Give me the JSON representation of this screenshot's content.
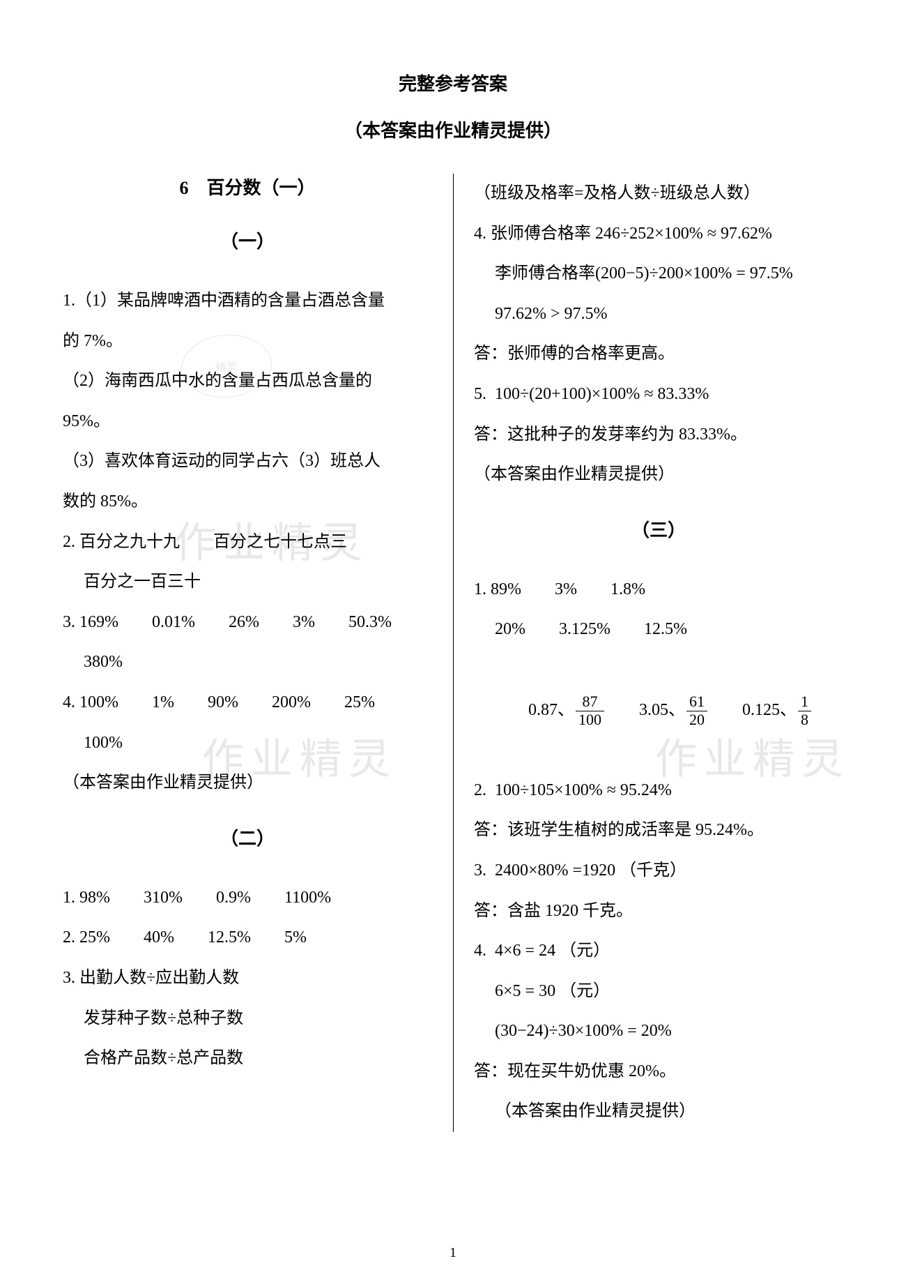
{
  "title": "完整参考答案",
  "subtitle": "（本答案由作业精灵提供）",
  "chapter": "6　百分数（一）",
  "pageNumber": "1",
  "watermark": "作业精灵",
  "stampText": "精灵",
  "left": {
    "sec1_header": "（一）",
    "l1": "1.（1）某品牌啤酒中酒精的含量占酒总含量",
    "l2": "的 7%。",
    "l3": "（2）海南西瓜中水的含量占西瓜总含量的",
    "l4": "95%。",
    "l5": "（3）喜欢体育运动的同学占六（3）班总人",
    "l6": "数的 85%。",
    "l7": "2. 百分之九十九　　百分之七十七点三",
    "l8": "百分之一百三十",
    "l9": "3. 169%　　0.01%　　26%　　3%　　50.3%",
    "l10": "380%",
    "l11": "4. 100%　　1%　　90%　　200%　　25%",
    "l12": "100%",
    "l13": "（本答案由作业精灵提供）",
    "sec2_header": "（二）",
    "l14": "1. 98%　　310%　　0.9%　　1100%",
    "l15": "2. 25%　　40%　　12.5%　　5%",
    "l16": "3. 出勤人数÷应出勤人数",
    "l17": "发芽种子数÷总种子数",
    "l18": "合格产品数÷总产品数"
  },
  "right": {
    "r1": "（班级及格率=及格人数÷班级总人数）",
    "r2": "4. 张师傅合格率 246÷252×100% ≈ 97.62%",
    "r3": "李师傅合格率(200−5)÷200×100% = 97.5%",
    "r4": "97.62% > 97.5%",
    "r5": "答：张师傅的合格率更高。",
    "r6": "5.  100÷(20+100)×100% ≈ 83.33%",
    "r7": "答：这批种子的发芽率约为 83.33%。",
    "r8": "（本答案由作业精灵提供）",
    "sec3_header": "（三）",
    "r9": "1. 89%　　3%　　1.8%",
    "r10": "20%　　3.125%　　12.5%",
    "r11a": "0.87、",
    "r11b": "　　3.05、",
    "r11c": "　　0.125、",
    "f1n": "87",
    "f1d": "100",
    "f2n": "61",
    "f2d": "20",
    "f3n": "1",
    "f3d": "8",
    "r12": "2.  100÷105×100% ≈ 95.24%",
    "r13": "答：该班学生植树的成活率是 95.24%。",
    "r14": "3.  2400×80% =1920 （千克）",
    "r15": "答：含盐 1920 千克。",
    "r16": "4.  4×6 = 24 （元）",
    "r17": "6×5 = 30 （元）",
    "r18": "(30−24)÷30×100% = 20%",
    "r19": "答：现在买牛奶优惠 20%。",
    "r20": "（本答案由作业精灵提供）"
  }
}
